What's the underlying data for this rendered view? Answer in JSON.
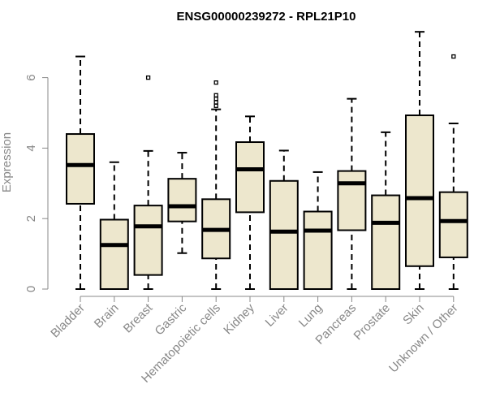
{
  "chart_data": {
    "type": "boxplot",
    "title": "ENSG00000239272 - RPL21P10",
    "xlabel": "",
    "ylabel": "Expression",
    "ylim": [
      0,
      7.3
    ],
    "yticks": [
      "0",
      "2",
      "4",
      "6"
    ],
    "grid": false,
    "box_fill": "#ede7cd",
    "box_stroke": "#000000",
    "categories": [
      "Bladder",
      "Brain",
      "Breast",
      "Gastric",
      "Hematopoietic cells",
      "Kidney",
      "Liver",
      "Lung",
      "Pancreas",
      "Prostate",
      "Skin",
      "Unknown / Other"
    ],
    "boxes": [
      {
        "min": 0,
        "q1": 2.42,
        "median": 3.52,
        "q3": 4.4,
        "max": 6.6,
        "outliers": []
      },
      {
        "min": 0,
        "q1": 0,
        "median": 1.25,
        "q3": 1.97,
        "max": 3.6,
        "outliers": []
      },
      {
        "min": 0,
        "q1": 0.4,
        "median": 1.78,
        "q3": 2.37,
        "max": 3.92,
        "outliers": [
          6.0
        ]
      },
      {
        "min": 1.02,
        "q1": 1.92,
        "median": 2.35,
        "q3": 3.13,
        "max": 3.87,
        "outliers": []
      },
      {
        "min": 0,
        "q1": 0.87,
        "median": 1.68,
        "q3": 2.55,
        "max": 5.1,
        "outliers": [
          5.2,
          5.3,
          5.4,
          5.5,
          5.86
        ]
      },
      {
        "min": 0,
        "q1": 2.18,
        "median": 3.4,
        "q3": 4.17,
        "max": 4.9,
        "outliers": []
      },
      {
        "min": 0,
        "q1": 0,
        "median": 1.63,
        "q3": 3.07,
        "max": 3.93,
        "outliers": []
      },
      {
        "min": 0,
        "q1": 0,
        "median": 1.66,
        "q3": 2.2,
        "max": 3.32,
        "outliers": []
      },
      {
        "min": 0,
        "q1": 1.67,
        "median": 3.0,
        "q3": 3.35,
        "max": 5.4,
        "outliers": []
      },
      {
        "min": 0,
        "q1": 0,
        "median": 1.88,
        "q3": 2.66,
        "max": 4.45,
        "outliers": []
      },
      {
        "min": 0,
        "q1": 0.65,
        "median": 2.58,
        "q3": 4.93,
        "max": 7.3,
        "outliers": []
      },
      {
        "min": 0,
        "q1": 0.9,
        "median": 1.93,
        "q3": 2.75,
        "max": 4.7,
        "outliers": [
          6.6
        ]
      }
    ]
  }
}
